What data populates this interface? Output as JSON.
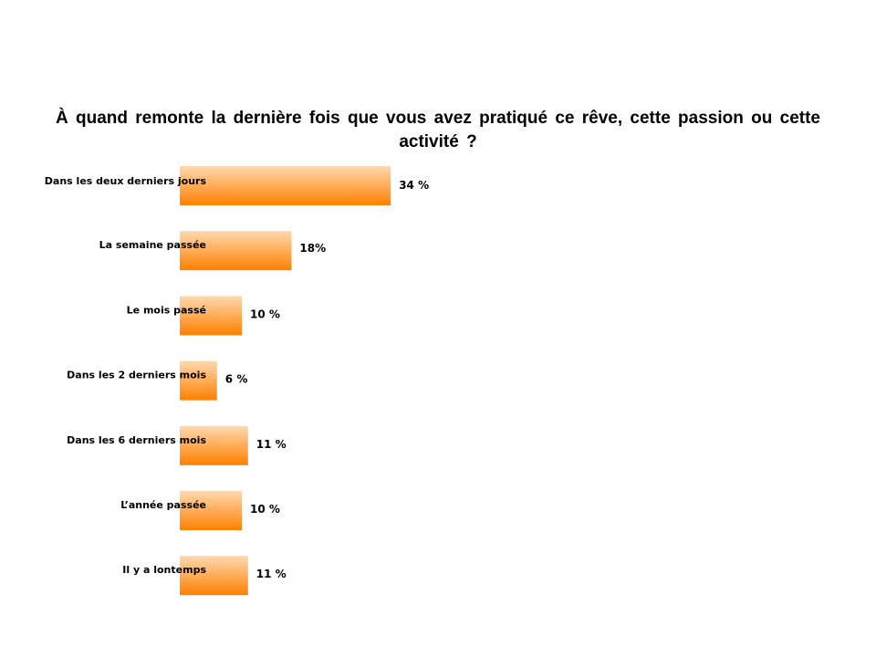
{
  "chart_data": {
    "type": "bar",
    "orientation": "horizontal",
    "title": "À quand remonte la dernière fois que vous avez pratiqué ce rêve, cette passion ou cette activité ?",
    "categories": [
      "Dans les deux derniers jours",
      "La semaine passée",
      "Le mois passé",
      "Dans les 2 derniers mois",
      "Dans les 6 derniers mois",
      "L’année passée",
      "Il y a lontemps"
    ],
    "values": [
      34,
      18,
      10,
      6,
      11,
      10,
      11
    ],
    "data_labels": [
      "34 %",
      "18%",
      "10 %",
      "6 %",
      "11 %",
      "10 %",
      "11 %"
    ],
    "unit": "%",
    "xlim": [
      0,
      100
    ],
    "grid": false,
    "legend": "none",
    "colors": {
      "bar_top": "#FFD9B0",
      "bar_bottom": "#FF8000"
    }
  }
}
